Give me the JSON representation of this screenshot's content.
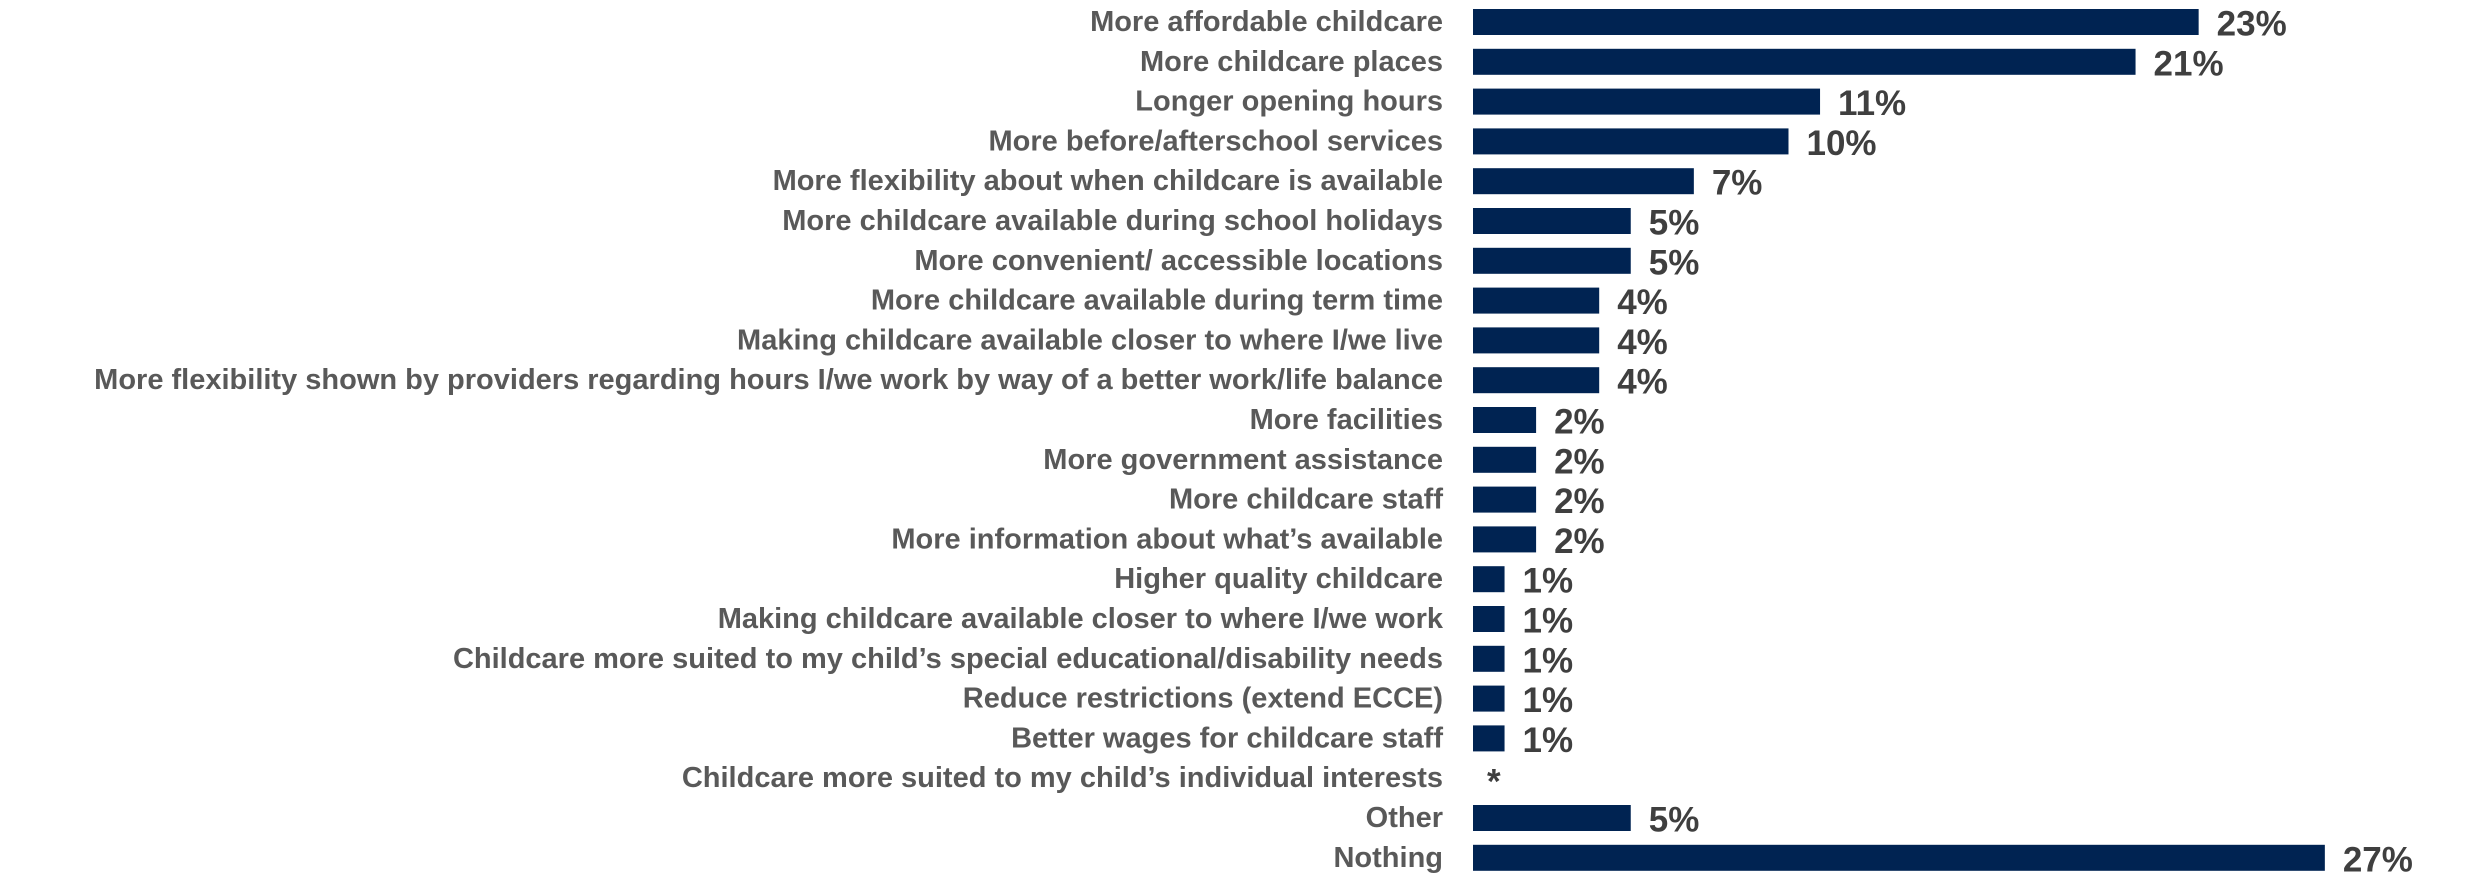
{
  "colors": {
    "bar": "#002352",
    "category_text": "#595959",
    "value_text": "#3f3f3f",
    "background": "#ffffff"
  },
  "chart_data": {
    "type": "bar",
    "orientation": "horizontal",
    "title": "",
    "xlabel": "",
    "ylabel": "",
    "grid": false,
    "legend": "none",
    "xlim": [
      0,
      27
    ],
    "categories": [
      "More affordable childcare",
      "More childcare places",
      "Longer opening hours",
      "More before/afterschool services",
      "More flexibility about when childcare is available",
      "More childcare available during school holidays",
      "More convenient/ accessible locations",
      "More childcare available during term time",
      "Making childcare available closer to where I/we live",
      "More flexibility shown by providers regarding hours I/we work by way of a better work/life balance",
      "More facilities",
      "More government assistance",
      "More childcare staff",
      "More information about what’s available",
      "Higher quality childcare",
      "Making childcare available closer to where I/we work",
      "Childcare more suited to my child’s special educational/disability needs",
      "Reduce restrictions (extend ECCE)",
      "Better wages for childcare staff",
      "Childcare more suited to my child’s individual interests",
      "Other",
      "Nothing"
    ],
    "values": [
      23,
      21,
      11,
      10,
      7,
      5,
      5,
      4,
      4,
      4,
      2,
      2,
      2,
      2,
      1,
      1,
      1,
      1,
      1,
      0,
      5,
      27
    ],
    "value_labels": [
      "23%",
      "21%",
      "11%",
      "10%",
      "7%",
      "5%",
      "5%",
      "4%",
      "4%",
      "4%",
      "2%",
      "2%",
      "2%",
      "2%",
      "1%",
      "1%",
      "1%",
      "1%",
      "1%",
      "*",
      "5%",
      "27%"
    ]
  }
}
